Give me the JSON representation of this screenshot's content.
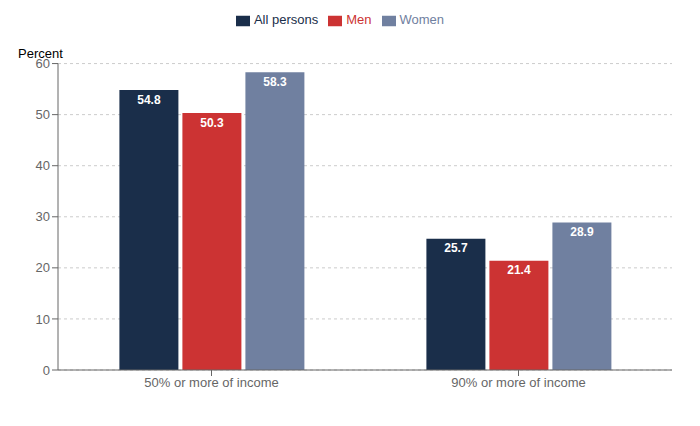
{
  "chart_data": {
    "type": "bar",
    "ylabel": "Percent",
    "categories": [
      "50% or more of income",
      "90% or more of income"
    ],
    "series": [
      {
        "name": "All persons",
        "color": "#1a2e4a",
        "values": [
          54.8,
          25.7
        ]
      },
      {
        "name": "Men",
        "color": "#cc3333",
        "values": [
          50.3,
          21.4
        ]
      },
      {
        "name": "Women",
        "color": "#7080a0",
        "values": [
          58.3,
          28.9
        ]
      }
    ],
    "ylim": [
      0,
      60
    ],
    "yticks": [
      0,
      10,
      20,
      30,
      40,
      50,
      60
    ],
    "grid": true,
    "legend": "top",
    "data_labels": true
  }
}
